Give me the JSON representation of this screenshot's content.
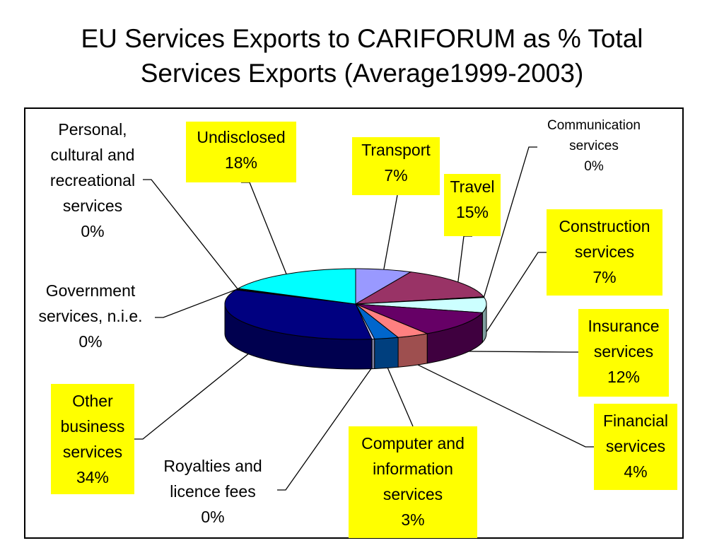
{
  "title_line1": "EU Services Exports to CARIFORUM as % Total",
  "title_line2": "Services Exports (Average1999-2003)",
  "chart_data": {
    "type": "pie",
    "title": "EU Services Exports to CARIFORUM as % Total Services Exports (Average1999-2003)",
    "slices": [
      {
        "label": "Transport",
        "value": 7,
        "text": "Transport\n7%",
        "color": "#9999ff",
        "highlight": true
      },
      {
        "label": "Travel",
        "value": 15,
        "text": "Travel\n15%",
        "color": "#993366",
        "highlight": true
      },
      {
        "label": "Communication services",
        "value": 0,
        "text": "Communication\nservices\n0%",
        "color": "#ccffff",
        "highlight": false
      },
      {
        "label": "Construction services",
        "value": 7,
        "text": "Construction\nservices\n7%",
        "color": "#ccffff",
        "highlight": true
      },
      {
        "label": "Insurance services",
        "value": 12,
        "text": "Insurance\nservices\n12%",
        "color": "#660066",
        "highlight": true
      },
      {
        "label": "Financial services",
        "value": 4,
        "text": "Financial\nservices\n4%",
        "color": "#ff8080",
        "highlight": true
      },
      {
        "label": "Computer and information services",
        "value": 3,
        "text": "Computer and\ninformation\nservices\n3%",
        "color": "#0066cc",
        "highlight": true
      },
      {
        "label": "Royalties and licence fees",
        "value": 0,
        "text": "Royalties and\nlicence fees\n0%",
        "color": "#ccccff",
        "highlight": false
      },
      {
        "label": "Other business services",
        "value": 34,
        "text": "Other\nbusiness\nservices\n34%",
        "color": "#000080",
        "highlight": true
      },
      {
        "label": "Government services, n.i.e.",
        "value": 0,
        "text": "Government\nservices, n.i.e.\n0%",
        "color": "#ff00ff",
        "highlight": false
      },
      {
        "label": "Personal, cultural and recreational services",
        "value": 0,
        "text": "Personal,\ncultural and\nrecreational\nservices\n0%",
        "color": "#ffff00",
        "highlight": false
      },
      {
        "label": "Undisclosed",
        "value": 18,
        "text": "Undisclosed\n18%",
        "color": "#00ffff",
        "highlight": true
      }
    ]
  }
}
